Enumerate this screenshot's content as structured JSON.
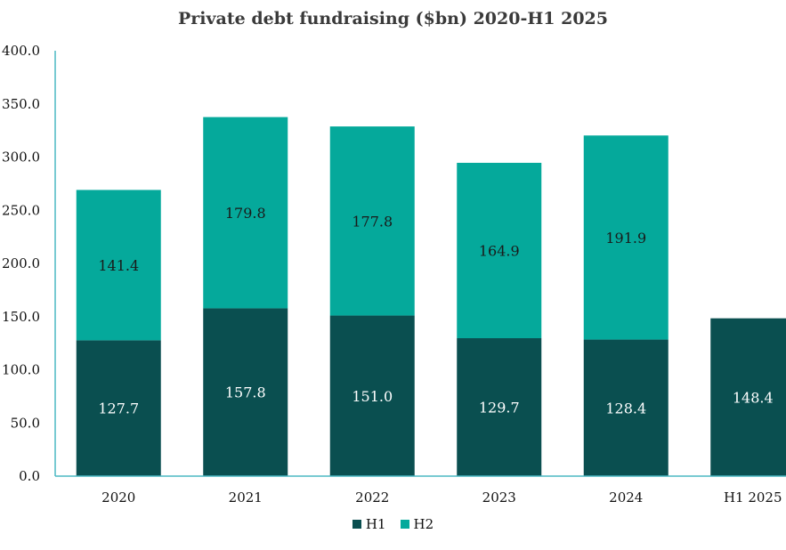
{
  "chart_data": {
    "type": "bar",
    "stacked": true,
    "title": "Private debt fundraising ($bn) 2020-H1 2025",
    "categories": [
      "2020",
      "2021",
      "2022",
      "2023",
      "2024",
      "H1 2025"
    ],
    "series": [
      {
        "name": "H1",
        "color": "#0a4f50",
        "values": [
          127.7,
          157.8,
          151.0,
          129.7,
          128.4,
          148.4
        ]
      },
      {
        "name": "H2",
        "color": "#05a99b",
        "values": [
          141.4,
          179.8,
          177.8,
          164.9,
          191.9,
          null
        ]
      }
    ],
    "data_labels": {
      "H1": [
        "127.7",
        "157.8",
        "151.0",
        "129.7",
        "128.4",
        "148.4"
      ],
      "H2": [
        "141.4",
        "179.8",
        "177.8",
        "164.9",
        "191.9",
        ""
      ]
    },
    "ylim": [
      0,
      400
    ],
    "yticks": [
      "0.0",
      "50.0",
      "100.0",
      "150.0",
      "200.0",
      "250.0",
      "300.0",
      "350.0",
      "400.0"
    ],
    "xlabel": "",
    "ylabel": "",
    "grid": false,
    "legend": "bottom",
    "axis_color": "#4bb8c4"
  }
}
